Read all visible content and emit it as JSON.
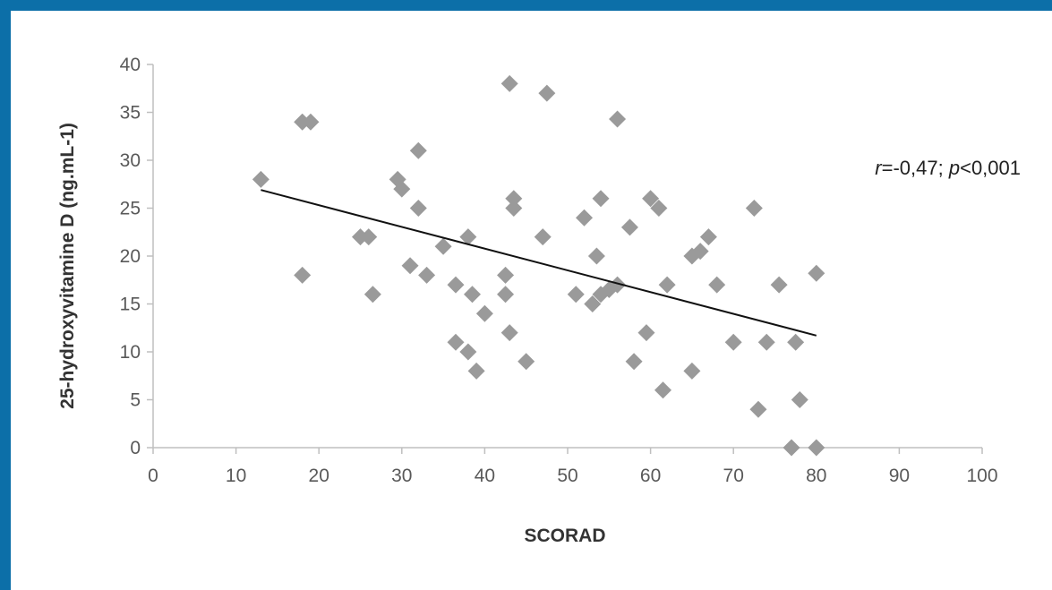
{
  "chart_data": {
    "type": "scatter",
    "title": "",
    "xlabel": "SCORAD",
    "ylabel": "25-hydroxyvitamine D (ng.mL-1)",
    "xlim": [
      0,
      100
    ],
    "ylim": [
      0,
      40
    ],
    "xticks": [
      0,
      10,
      20,
      30,
      40,
      50,
      60,
      70,
      80,
      90,
      100
    ],
    "yticks": [
      0,
      5,
      10,
      15,
      20,
      25,
      30,
      35,
      40
    ],
    "grid": false,
    "legend": "none",
    "marker": "diamond",
    "marker_color": "#9a9a9a",
    "trendline": {
      "x": [
        13,
        80
      ],
      "y": [
        26.9,
        11.7
      ],
      "color": "#111111"
    },
    "annotation": {
      "r_symbol": "r",
      "r_text": "=-0,47; ",
      "p_symbol": "p",
      "p_text": "<0,001"
    },
    "series": [
      {
        "points": [
          [
            13,
            28
          ],
          [
            18,
            34
          ],
          [
            19,
            34
          ],
          [
            18,
            18
          ],
          [
            25,
            22
          ],
          [
            26,
            22
          ],
          [
            26.5,
            16
          ],
          [
            29.5,
            28
          ],
          [
            30,
            27
          ],
          [
            31,
            19
          ],
          [
            32,
            31
          ],
          [
            32,
            25
          ],
          [
            33,
            18
          ],
          [
            35,
            21
          ],
          [
            36.5,
            17
          ],
          [
            36.5,
            11
          ],
          [
            38,
            22
          ],
          [
            38,
            10
          ],
          [
            38.5,
            16
          ],
          [
            39,
            8
          ],
          [
            40,
            14
          ],
          [
            42.5,
            16
          ],
          [
            42.5,
            18
          ],
          [
            43,
            12
          ],
          [
            43,
            38
          ],
          [
            43.5,
            25
          ],
          [
            43.5,
            26
          ],
          [
            45,
            9
          ],
          [
            47,
            22
          ],
          [
            47.5,
            37
          ],
          [
            51,
            16
          ],
          [
            52,
            24
          ],
          [
            53,
            15
          ],
          [
            53.5,
            20
          ],
          [
            54,
            16
          ],
          [
            54,
            26
          ],
          [
            55,
            16.5
          ],
          [
            56,
            17
          ],
          [
            56,
            34.3
          ],
          [
            57.5,
            23
          ],
          [
            58,
            9
          ],
          [
            59.5,
            12
          ],
          [
            60,
            26
          ],
          [
            61,
            25
          ],
          [
            61.5,
            6
          ],
          [
            62,
            17
          ],
          [
            65,
            8
          ],
          [
            65,
            20
          ],
          [
            66,
            20.5
          ],
          [
            67,
            22
          ],
          [
            68,
            17
          ],
          [
            70,
            11
          ],
          [
            72.5,
            25
          ],
          [
            73,
            4
          ],
          [
            74,
            11
          ],
          [
            75.5,
            17
          ],
          [
            77,
            0
          ],
          [
            77.5,
            11
          ],
          [
            78,
            5
          ],
          [
            80,
            0
          ],
          [
            80,
            18.2
          ]
        ]
      }
    ]
  }
}
